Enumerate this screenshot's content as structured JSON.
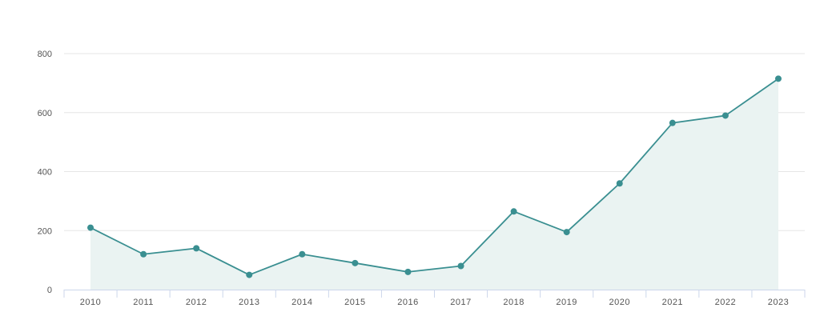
{
  "chart_data": {
    "type": "area",
    "title": "",
    "xlabel": "",
    "ylabel": "",
    "categories": [
      "2010",
      "2011",
      "2012",
      "2013",
      "2014",
      "2015",
      "2016",
      "2017",
      "2018",
      "2019",
      "2020",
      "2021",
      "2022",
      "2023"
    ],
    "series": [
      {
        "values": [
          210,
          120,
          140,
          50,
          120,
          90,
          60,
          80,
          265,
          195,
          360,
          565,
          590,
          715
        ]
      }
    ],
    "ylim": [
      0,
      800
    ],
    "yticks": [
      0,
      200,
      400,
      600,
      800
    ],
    "grid": true,
    "legend": "none",
    "markers": true,
    "colors": {
      "line": "#3a8f91",
      "area": "#eaf3f2",
      "grid": "#e6e6e6",
      "axis": "#ccd6eb",
      "text": "#555555"
    }
  }
}
